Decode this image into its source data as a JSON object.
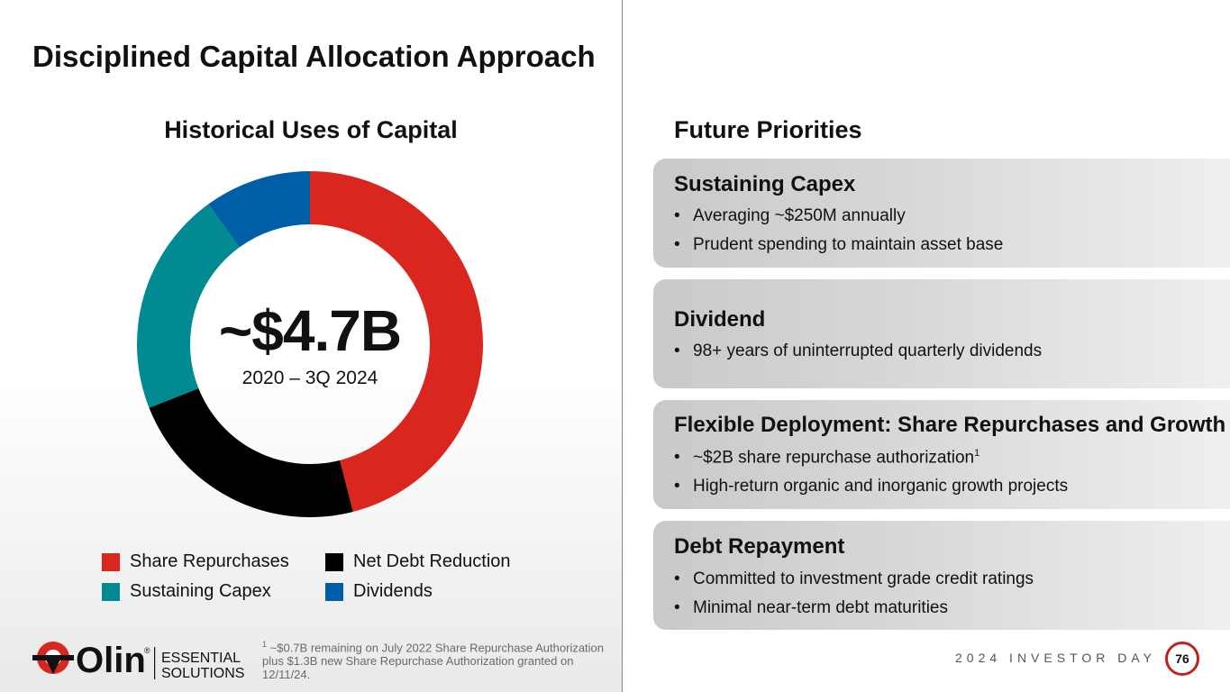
{
  "page": {
    "title": "Disciplined Capital Allocation Approach",
    "page_number": "76",
    "footer_label": "2024 INVESTOR DAY"
  },
  "historical": {
    "title": "Historical Uses of Capital",
    "center_value": "~$4.7B",
    "center_subtitle": "2020 – 3Q 2024"
  },
  "chart_data": {
    "type": "pie",
    "variant": "donut",
    "title": "Historical Uses of Capital",
    "categories": [
      "Share Repurchases",
      "Net Debt Reduction",
      "Sustaining Capex",
      "Dividends"
    ],
    "values": [
      46,
      23,
      21,
      10
    ],
    "unit": "% of ~$4.7B (estimated from slice angles)",
    "colors": [
      "#d9261e",
      "#000000",
      "#018a91",
      "#005ea6"
    ],
    "legend_position": "bottom",
    "legend": [
      {
        "label": "Share Repurchases",
        "color": "#d9261e"
      },
      {
        "label": "Net Debt Reduction",
        "color": "#000000"
      },
      {
        "label": "Sustaining Capex",
        "color": "#018a91"
      },
      {
        "label": "Dividends",
        "color": "#005ea6"
      }
    ]
  },
  "future": {
    "title": "Future Priorities",
    "cards": [
      {
        "title": "Sustaining Capex",
        "bullets": [
          "Averaging ~$250M annually",
          "Prudent spending to maintain asset base"
        ]
      },
      {
        "title": "Dividend",
        "bullets": [
          "98+ years of uninterrupted quarterly dividends"
        ]
      },
      {
        "title": "Flexible Deployment: Share Repurchases and Growth",
        "bullets": [
          "~$2B share repurchase authorization",
          "High-return organic and inorganic growth projects"
        ],
        "footnote_ref": "1"
      },
      {
        "title": "Debt Repayment",
        "bullets": [
          "Committed to investment grade credit ratings",
          "Minimal near-term debt maturities"
        ]
      }
    ]
  },
  "footnote": {
    "marker": "1",
    "text": "~$0.7B remaining on July 2022 Share Repurchase Authorization plus $1.3B new Share Repurchase Authorization granted on 12/11/24."
  },
  "logo": {
    "name": "Olin",
    "tagline_line1": "ESSENTIAL",
    "tagline_line2": "SOLUTIONS",
    "registered": "®"
  },
  "colors": {
    "accent_red": "#d9261e",
    "card_gray": "#d0d0d0"
  }
}
